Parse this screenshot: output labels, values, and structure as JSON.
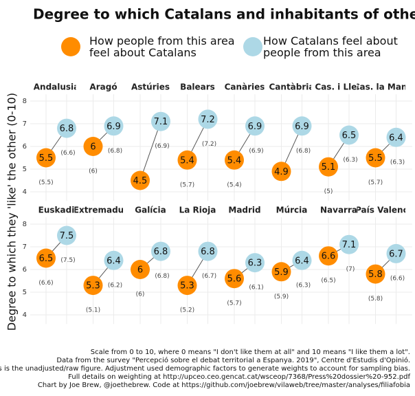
{
  "chart_data": {
    "type": "dumbbell",
    "title": "Degree to which Catalans and inhabitants of other region",
    "ylabel": "Degree to which they 'like' the other (0-10)",
    "ylim": [
      3.6,
      8.3
    ],
    "yticks": [
      4,
      5,
      6,
      7,
      8
    ],
    "grid": true,
    "categories": [
      "Andalusia",
      "Aragó",
      "Astúries",
      "Balears",
      "Canàries",
      "Cantàbria",
      "Cas. i Lleó",
      "Cas. la Manxa",
      "Euskadi",
      "Extremadura",
      "Galícia",
      "La Rioja",
      "Madrid",
      "Múrcia",
      "Navarra",
      "País Valencià"
    ],
    "series": [
      {
        "name": "How people from this area\nfeel about Catalans",
        "color": "#ff8c00",
        "values": [
          5.5,
          6,
          4.5,
          5.4,
          5.4,
          4.9,
          5.1,
          5.5,
          6.5,
          5.3,
          6,
          5.3,
          5.6,
          5.9,
          6.6,
          5.8
        ],
        "unadjusted": [
          5.5,
          6,
          null,
          5.7,
          5.4,
          null,
          5,
          5.7,
          6.6,
          5.1,
          6,
          5.2,
          5.7,
          5.9,
          6.5,
          5.8
        ],
        "unadjusted_labels": [
          "(5.5)",
          "(6)",
          null,
          "(5.7)",
          "(5.4)",
          null,
          "(5)",
          "(5.7)",
          "(6.6)",
          "(5.1)",
          "(6)",
          "(5.2)",
          "(5.7)",
          "(5.9)",
          "(6.5)",
          "(5.8)"
        ]
      },
      {
        "name": "How Catalans feel about\npeople from this area",
        "color": "#add8e6",
        "values": [
          6.8,
          6.9,
          7.1,
          7.2,
          6.9,
          6.9,
          6.5,
          6.4,
          7.5,
          6.4,
          6.8,
          6.8,
          6.3,
          6.4,
          7.1,
          6.7
        ],
        "unadjusted": [
          6.6,
          6.8,
          6.9,
          7.2,
          6.9,
          6.8,
          6.3,
          6.3,
          7.5,
          6.2,
          6.8,
          6.7,
          6.1,
          6.3,
          7,
          6.6
        ],
        "unadjusted_labels": [
          "(6.6)",
          "(6.8)",
          "(6.9)",
          "(7.2)",
          "(6.9)",
          "(6.8)",
          "(6.3)",
          "(6.3)",
          "(7.5)",
          "(6.2)",
          "(6.8)",
          "(6.7)",
          "(6.1)",
          "(6.3)",
          "(7)",
          "(6.6)"
        ]
      }
    ],
    "caption": [
      "Scale from 0 to 10, where 0 means \"I don't like them at all\" and 10 means \"I like them a lot\".",
      "Data from the survey \"Percepció sobre el debat territorial a Espanya. 2019\", Centre d'Estudis d'Opinió.",
      "nthesis is the unadjusted/raw figure. Adjustment used demographic factors to generate weights to account for sampling bias.",
      "Full details on weighting at http://upceo.ceo.gencat.cat/wsceop/7368/Press%20dossier%20-952.pdf",
      "Chart by Joe Brew, @joethebrew. Code at https://github.com/joebrew/vilaweb/tree/master/analyses/filiafobia"
    ]
  }
}
